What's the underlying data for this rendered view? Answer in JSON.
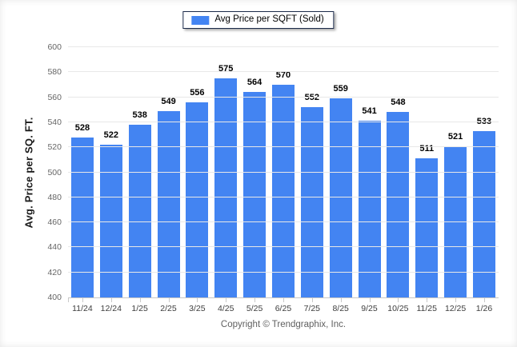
{
  "legend": {
    "label": "Avg Price per SQFT (Sold)"
  },
  "footer": {
    "copyright": "Copyright © Trendgraphix, Inc."
  },
  "colors": {
    "bar": "#4384f2",
    "gridline": "#e8e8e8",
    "axis_line": "#c6c6c6",
    "y_tick_label": "#666666",
    "x_label": "#3d3d3d",
    "value_label": "#000000",
    "legend_border": "#1c2b4a",
    "footer_text": "#606060"
  },
  "chart_data": {
    "type": "bar",
    "title": "",
    "xlabel": "",
    "ylabel": "Avg. Price per SQ. FT.",
    "categories": [
      "11/24",
      "12/24",
      "1/25",
      "2/25",
      "3/25",
      "4/25",
      "5/25",
      "6/25",
      "7/25",
      "8/25",
      "9/25",
      "10/25",
      "11/25",
      "12/25",
      "1/26"
    ],
    "series": [
      {
        "name": "Avg Price per SQFT (Sold)",
        "values": [
          528,
          522,
          538,
          549,
          556,
          575,
          564,
          570,
          552,
          559,
          541,
          548,
          511,
          521,
          533
        ]
      }
    ],
    "ylim": [
      400,
      600
    ],
    "ytick_step": 20,
    "grid": true,
    "legend_position": "top",
    "value_labels": true
  }
}
